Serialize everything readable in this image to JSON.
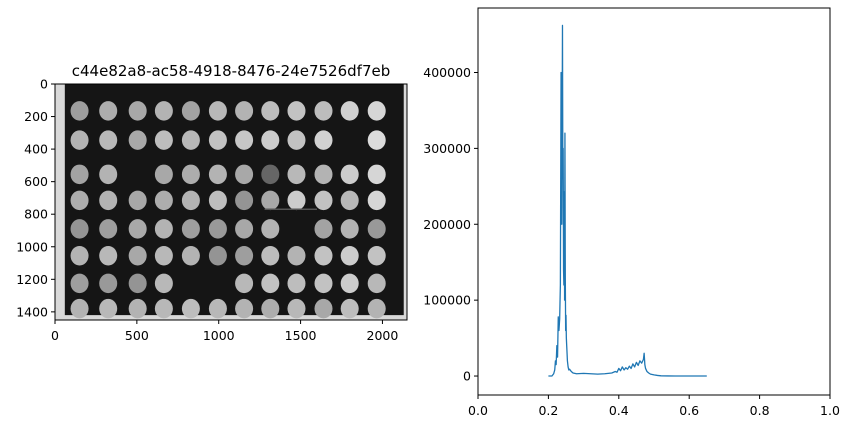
{
  "chart_data": [
    {
      "type": "heatmap",
      "title": "c44e82a8-ac58-4918-8476-24e7526df7eb",
      "colormap": "gray",
      "description_of_content": "",
      "xlim": [
        0,
        2150
      ],
      "ylim": [
        1450,
        0
      ],
      "x_ticks": [
        0,
        500,
        1000,
        1500,
        2000
      ],
      "y_ticks": [
        0,
        200,
        400,
        600,
        800,
        1000,
        1200,
        1400
      ],
      "x_tick_labels": [
        "0",
        "500",
        "1000",
        "1500",
        "2000"
      ],
      "y_tick_labels": [
        "0",
        "200",
        "400",
        "600",
        "800",
        "1000",
        "1200",
        "1400"
      ],
      "plate": {
        "background_x": [
          60,
          2130
        ],
        "background_y": [
          0,
          1420
        ],
        "columns_x": [
          150,
          325,
          505,
          665,
          830,
          995,
          1155,
          1315,
          1475,
          1640,
          1800,
          1965
        ],
        "rows_y": [
          165,
          345,
          555,
          715,
          890,
          1055,
          1225,
          1380
        ],
        "colony_brightness": [
          [
            0.62,
            0.68,
            0.66,
            0.7,
            0.64,
            0.72,
            0.7,
            0.74,
            0.76,
            0.74,
            0.82,
            0.84
          ],
          [
            0.7,
            0.72,
            0.66,
            0.74,
            0.72,
            0.76,
            0.78,
            0.8,
            0.76,
            0.82,
            0.0,
            0.86
          ],
          [
            0.64,
            0.7,
            0.0,
            0.66,
            0.68,
            0.7,
            0.66,
            0.4,
            0.72,
            0.7,
            0.8,
            0.84
          ],
          [
            0.68,
            0.7,
            0.66,
            0.68,
            0.7,
            0.74,
            0.58,
            0.66,
            0.8,
            0.76,
            0.72,
            0.84
          ],
          [
            0.58,
            0.62,
            0.66,
            0.7,
            0.62,
            0.6,
            0.66,
            0.7,
            0.0,
            0.64,
            0.7,
            0.6
          ],
          [
            0.7,
            0.72,
            0.66,
            0.72,
            0.7,
            0.58,
            0.62,
            0.74,
            0.7,
            0.76,
            0.8,
            0.76
          ],
          [
            0.62,
            0.6,
            0.58,
            0.72,
            0.0,
            0.0,
            0.72,
            0.76,
            0.74,
            0.76,
            0.8,
            0.72
          ],
          [
            0.7,
            0.72,
            0.7,
            0.72,
            0.74,
            0.72,
            0.7,
            0.68,
            0.72,
            0.66,
            0.74,
            0.7
          ]
        ]
      }
    },
    {
      "type": "line",
      "title": "",
      "xlabel": "",
      "ylabel": "",
      "xlim": [
        0.0,
        1.0
      ],
      "ylim": [
        -25000,
        485000
      ],
      "x_ticks": [
        0.0,
        0.2,
        0.4,
        0.6,
        0.8,
        1.0
      ],
      "x_tick_labels": [
        "0.0",
        "0.2",
        "0.4",
        "0.6",
        "0.8",
        "1.0"
      ],
      "y_ticks": [
        0,
        100000,
        200000,
        300000,
        400000
      ],
      "y_tick_labels": [
        "0",
        "100000",
        "200000",
        "300000",
        "400000"
      ],
      "color": "#1f77b4",
      "series": [
        {
          "x": [
            0.2,
            0.21,
            0.215,
            0.218,
            0.22,
            0.222,
            0.224,
            0.226,
            0.228,
            0.23,
            0.232,
            0.234,
            0.236,
            0.238,
            0.24,
            0.241,
            0.242,
            0.243,
            0.244,
            0.245,
            0.246,
            0.247,
            0.248,
            0.249,
            0.25,
            0.251,
            0.252,
            0.253,
            0.254,
            0.256,
            0.258,
            0.26,
            0.265,
            0.27,
            0.28,
            0.3,
            0.32,
            0.34,
            0.36,
            0.38,
            0.39,
            0.395,
            0.4,
            0.405,
            0.41,
            0.415,
            0.42,
            0.425,
            0.43,
            0.435,
            0.44,
            0.445,
            0.45,
            0.455,
            0.46,
            0.465,
            0.47,
            0.472,
            0.474,
            0.476,
            0.478,
            0.48,
            0.485,
            0.49,
            0.5,
            0.51,
            0.52,
            0.54,
            0.56,
            0.58,
            0.6,
            0.62,
            0.64,
            0.65
          ],
          "y": [
            0,
            0,
            3000,
            8000,
            20000,
            15000,
            40000,
            25000,
            78000,
            60000,
            75000,
            120000,
            400000,
            200000,
            462000,
            260000,
            300000,
            140000,
            120000,
            243000,
            100000,
            320000,
            130000,
            60000,
            80000,
            50000,
            40000,
            30000,
            20000,
            12000,
            8000,
            9000,
            6000,
            4000,
            3000,
            3500,
            3000,
            2500,
            3000,
            4000,
            6000,
            5000,
            10000,
            7000,
            12000,
            8000,
            11000,
            9000,
            13000,
            10000,
            16000,
            12000,
            18000,
            14000,
            20000,
            17000,
            22000,
            30000,
            15000,
            10000,
            8000,
            6000,
            4000,
            2500,
            1500,
            800,
            300,
            100,
            50,
            20,
            10,
            5,
            2,
            0
          ]
        }
      ]
    }
  ]
}
